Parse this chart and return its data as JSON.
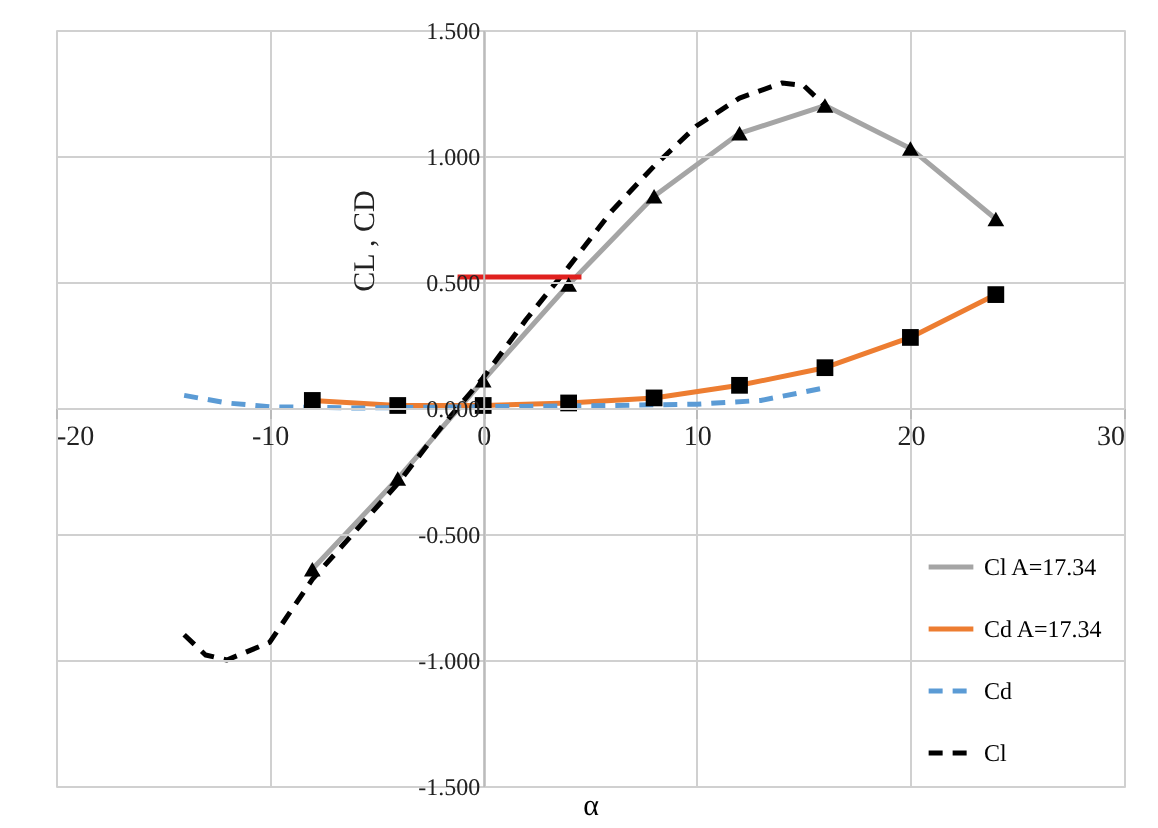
{
  "chart_data": {
    "type": "line",
    "xlabel": "α",
    "ylabel": "CL , CD",
    "xlim": [
      -20,
      30
    ],
    "xticks": [
      -20,
      -10,
      0,
      10,
      20,
      30
    ],
    "ylim": [
      -1.5,
      1.5
    ],
    "yticks": [
      {
        "value": -1.5,
        "label": "-1.500"
      },
      {
        "value": -1.0,
        "label": "-1.000"
      },
      {
        "value": -0.5,
        "label": "-0.500"
      },
      {
        "value": 0,
        "label": "0.000"
      },
      {
        "value": 0.5,
        "label": "0.500"
      },
      {
        "value": 1.0,
        "label": "1.000"
      },
      {
        "value": 1.5,
        "label": "1.500"
      }
    ],
    "grid": true,
    "legend": "bottom right",
    "series": [
      {
        "name": "Cl A=17.34",
        "color": "#a5a5a5",
        "marker": "triangle",
        "line_style": "solid",
        "x": [
          -8,
          -4,
          0,
          4,
          8,
          12,
          16,
          20,
          24
        ],
        "values": [
          -0.64,
          -0.28,
          0.11,
          0.49,
          0.84,
          1.09,
          1.2,
          1.03,
          0.75
        ]
      },
      {
        "name": "Cd A=17.34",
        "color": "#ed7d31",
        "marker": "square",
        "line_style": "solid",
        "x": [
          -8,
          -4,
          0,
          4,
          8,
          12,
          16,
          20,
          24
        ],
        "values": [
          0.03,
          0.01,
          0.01,
          0.02,
          0.04,
          0.09,
          0.16,
          0.28,
          0.45
        ]
      },
      {
        "name": "Cd",
        "color": "#5b9bd5",
        "marker": "none",
        "line_style": "dashed",
        "x": [
          -14,
          -12,
          -10,
          -6,
          0,
          6,
          10,
          13,
          16
        ],
        "values": [
          0.05,
          0.02,
          0.005,
          0.0,
          0.005,
          0.01,
          0.015,
          0.03,
          0.08
        ]
      },
      {
        "name": "Cl",
        "color": "#000000",
        "marker": "none",
        "line_style": "dashed",
        "x": [
          -14,
          -13,
          -12,
          -10,
          -8,
          -4,
          -2,
          0,
          2,
          4,
          6,
          8,
          10,
          12,
          14,
          15,
          16
        ],
        "values": [
          -0.9,
          -0.98,
          -1.0,
          -0.93,
          -0.68,
          -0.3,
          -0.08,
          0.12,
          0.35,
          0.56,
          0.78,
          0.96,
          1.12,
          1.23,
          1.29,
          1.28,
          1.2
        ]
      },
      {
        "color": "#e0201e",
        "marker": "none",
        "line_style": "solid",
        "x": [
          -1.2,
          4.6
        ],
        "values": [
          0.52,
          0.52
        ]
      }
    ]
  }
}
